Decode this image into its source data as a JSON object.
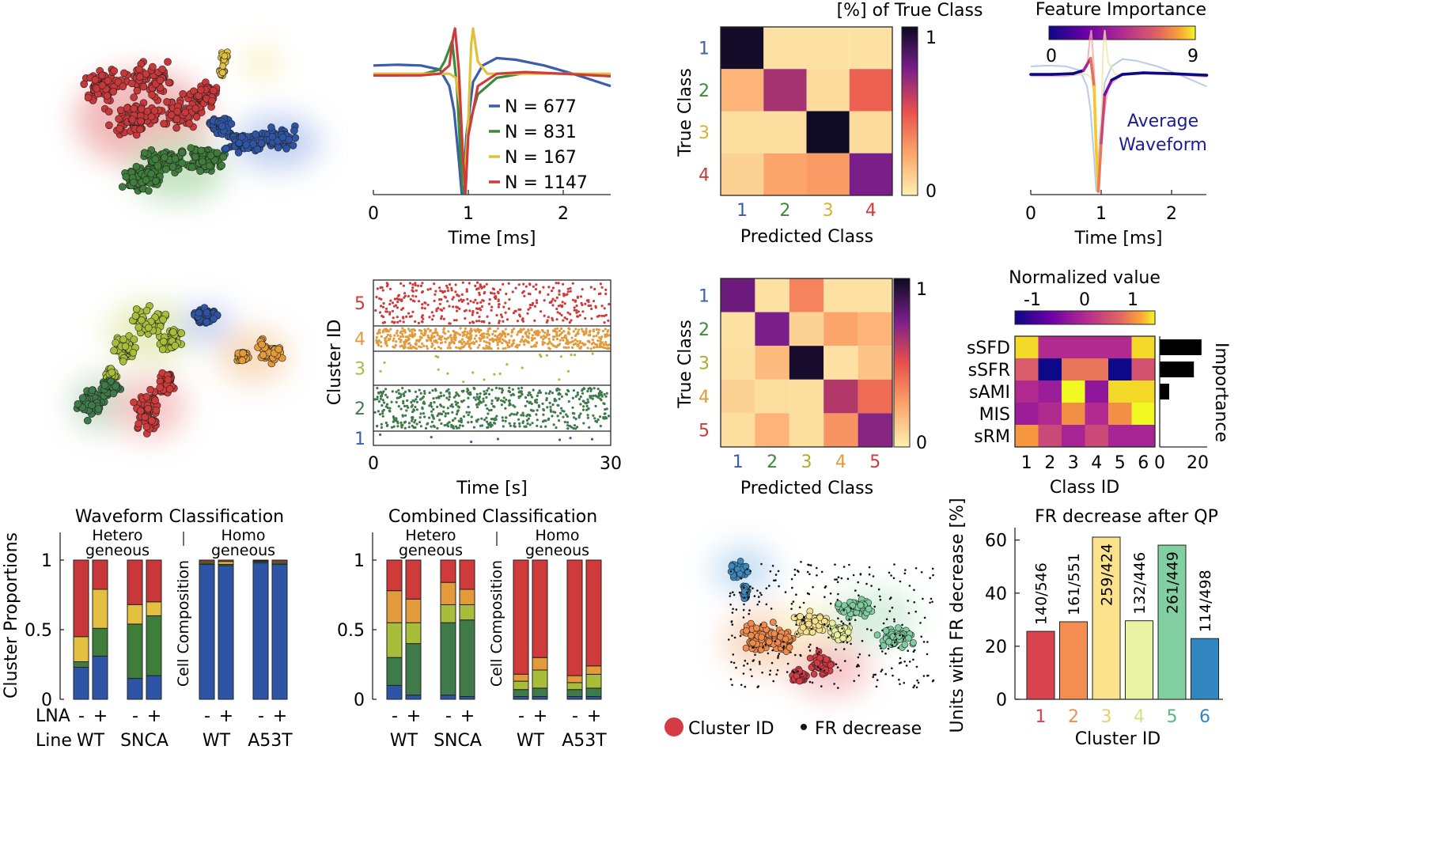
{
  "chart_data": [
    {
      "id": "umap_waveform",
      "type": "scatter",
      "title": "",
      "series": [
        {
          "color": "#c8373a"
        },
        {
          "color": "#3f7d3a"
        },
        {
          "color": "#2e55a5"
        },
        {
          "color": "#e3c040"
        }
      ]
    },
    {
      "id": "avg_waveforms",
      "type": "line",
      "xlabel": "Time [ms]",
      "ylabel": "",
      "xlim": [
        0,
        2.5
      ],
      "xticks": [
        "0",
        "1",
        "2"
      ],
      "series": [
        {
          "name": "N = 677",
          "color": "#3a5ea9",
          "x": [
            0,
            0.25,
            0.5,
            0.7,
            0.8,
            0.85,
            0.9,
            0.93,
            0.95,
            0.98,
            1.05,
            1.15,
            1.3,
            1.5,
            1.8,
            2.1,
            2.5
          ],
          "y": [
            0.55,
            0.56,
            0.55,
            0.5,
            0.3,
            0.0,
            -0.6,
            -1.0,
            -0.85,
            -0.3,
            0.35,
            0.55,
            0.64,
            0.62,
            0.55,
            0.45,
            0.3
          ]
        },
        {
          "name": "N = 831",
          "color": "#3b8a3b",
          "x": [
            0,
            0.25,
            0.5,
            0.7,
            0.75,
            0.8,
            0.83,
            0.88,
            0.92,
            0.95,
            1.0,
            1.1,
            1.3,
            1.6,
            2.0,
            2.5
          ],
          "y": [
            0.43,
            0.43,
            0.44,
            0.5,
            0.6,
            0.75,
            0.85,
            0.3,
            -0.6,
            -1.0,
            -0.2,
            0.2,
            0.4,
            0.46,
            0.45,
            0.42
          ]
        },
        {
          "name": "N = 167",
          "color": "#e0c13a",
          "x": [
            0,
            0.5,
            0.8,
            0.87,
            0.92,
            0.96,
            1.0,
            1.03,
            1.05,
            1.1,
            1.2,
            1.5,
            2.0,
            2.5
          ],
          "y": [
            0.45,
            0.45,
            0.45,
            0.4,
            0.0,
            -0.9,
            -0.1,
            0.8,
            1.0,
            0.6,
            0.45,
            0.45,
            0.45,
            0.45
          ]
        },
        {
          "name": "N = 1147",
          "color": "#cf3a3a",
          "x": [
            0,
            0.5,
            0.7,
            0.8,
            0.84,
            0.86,
            0.9,
            0.94,
            0.97,
            1.0,
            1.1,
            1.3,
            1.6,
            2.0,
            2.5
          ],
          "y": [
            0.43,
            0.43,
            0.45,
            0.55,
            0.9,
            1.0,
            0.5,
            -0.5,
            -1.0,
            -0.3,
            0.3,
            0.45,
            0.47,
            0.45,
            0.42
          ]
        }
      ]
    },
    {
      "id": "confusion_waveform",
      "type": "heatmap",
      "title": "[%] of True Class",
      "xlabel": "Predicted Class",
      "ylabel": "True Class",
      "categories": [
        "1",
        "2",
        "3",
        "4"
      ],
      "category_colors": [
        "#3a5ea9",
        "#3b8a3b",
        "#d8b232",
        "#cf3a3a"
      ],
      "values": [
        [
          0.98,
          0.05,
          0.05,
          0.05
        ],
        [
          0.2,
          0.65,
          0.07,
          0.45
        ],
        [
          0.06,
          0.06,
          0.99,
          0.07
        ],
        [
          0.1,
          0.25,
          0.28,
          0.75
        ]
      ],
      "colorbar": {
        "ticks": [
          "1",
          "0"
        ]
      }
    },
    {
      "id": "feature_importance_waveform",
      "type": "line",
      "title": "Feature Importance",
      "xlabel": "Time [ms]",
      "xlim": [
        0,
        2.5
      ],
      "xticks": [
        "0",
        "1",
        "2"
      ],
      "colorbar": {
        "min": "0",
        "max": "9"
      },
      "annotation": [
        "Average",
        "Waveform"
      ],
      "series": [
        {
          "name": "Average Waveform",
          "color": "#1a1f96",
          "x": [
            0,
            0.3,
            0.6,
            0.75,
            0.85,
            0.9,
            0.93,
            0.96,
            1.0,
            1.05,
            1.15,
            1.3,
            1.6,
            2.0,
            2.5
          ],
          "y": [
            0.45,
            0.45,
            0.46,
            0.5,
            0.65,
            0.3,
            -0.5,
            -1.0,
            -0.4,
            0.2,
            0.38,
            0.45,
            0.47,
            0.46,
            0.44
          ]
        }
      ]
    },
    {
      "id": "umap_combined",
      "type": "scatter",
      "series": [
        {
          "color": "#a8bd3a"
        },
        {
          "color": "#2e55a5"
        },
        {
          "color": "#e39a3a"
        },
        {
          "color": "#3f7a4a"
        },
        {
          "color": "#cf3a3a"
        }
      ]
    },
    {
      "id": "raster",
      "type": "scatter",
      "xlabel": "Time [s]",
      "ylabel": "Cluster ID",
      "xlim": [
        0,
        30
      ],
      "xticks": [
        "0",
        "30"
      ],
      "categories": [
        "5",
        "4",
        "3",
        "2",
        "1"
      ],
      "category_colors": [
        "#cf3a3a",
        "#e39a3a",
        "#a8bd3a",
        "#3f7a4a",
        "#3a5ea9"
      ],
      "spike_counts": [
        700,
        1100,
        40,
        1050,
        12
      ]
    },
    {
      "id": "confusion_combined",
      "type": "heatmap",
      "xlabel": "Predicted Class",
      "ylabel": "True Class",
      "categories": [
        "1",
        "2",
        "3",
        "4",
        "5"
      ],
      "category_colors": [
        "#3a5ea9",
        "#3b8a3b",
        "#a8ad2a",
        "#e39a3a",
        "#cf3a3a"
      ],
      "values": [
        [
          0.78,
          0.05,
          0.35,
          0.05,
          0.05
        ],
        [
          0.05,
          0.75,
          0.1,
          0.25,
          0.2
        ],
        [
          0.06,
          0.18,
          0.97,
          0.05,
          0.15
        ],
        [
          0.1,
          0.06,
          0.06,
          0.62,
          0.42
        ],
        [
          0.06,
          0.2,
          0.06,
          0.3,
          0.72
        ]
      ],
      "colorbar": {
        "ticks": [
          "1",
          "0"
        ]
      }
    },
    {
      "id": "feature_heatmap",
      "type": "heatmap",
      "title": "Normalized value",
      "xlabel": "Class ID",
      "ylabels": [
        "sSFD",
        "sSFR",
        "sAMI",
        "MIS",
        "sRM"
      ],
      "xlabels": [
        "1",
        "2",
        "3",
        "4",
        "5",
        "6"
      ],
      "colorbar": {
        "ticks": [
          "-1",
          "0",
          "1"
        ]
      },
      "values": [
        [
          1.2,
          0.0,
          0.0,
          0.0,
          0.0,
          1.2
        ],
        [
          0.55,
          -1.3,
          0.75,
          0.75,
          -1.3,
          0.45
        ],
        [
          0.0,
          -0.2,
          1.3,
          -0.3,
          1.2,
          1.2
        ],
        [
          -0.2,
          0.0,
          0.9,
          0.0,
          0.9,
          1.3
        ],
        [
          0.95,
          0.35,
          -0.1,
          0.35,
          -0.1,
          -0.1
        ]
      ],
      "importance": {
        "label": "Importance",
        "values": [
          22,
          18,
          5,
          0,
          0
        ],
        "xticks": [
          "0",
          "20"
        ],
        "xmax": 25
      }
    },
    {
      "id": "waveform_classification",
      "type": "bar",
      "title": "Waveform Classification",
      "ylabel": "Cluster Proportions",
      "ylim": [
        0,
        1
      ],
      "yticks": [
        "0",
        "0.5",
        "1"
      ],
      "group_labels": [
        [
          "Hetero",
          "geneous"
        ],
        [
          "Homo",
          "geneous"
        ]
      ],
      "side_label": "Cell Composition",
      "row_labels": [
        "LNA",
        "Line"
      ],
      "lna": [
        "-",
        "+",
        "-",
        "+",
        "-",
        "+",
        "-",
        "+"
      ],
      "lines": [
        "WT",
        "SNCA",
        "WT",
        "A53T"
      ],
      "stack_colors": [
        "#2e55a5",
        "#3f7d3a",
        "#e3c040",
        "#c8373a"
      ],
      "stacks": [
        [
          0.23,
          0.04,
          0.18,
          0.55
        ],
        [
          0.31,
          0.2,
          0.28,
          0.21
        ],
        [
          0.15,
          0.39,
          0.14,
          0.32
        ],
        [
          0.17,
          0.43,
          0.1,
          0.3
        ],
        [
          0.97,
          0.01,
          0.01,
          0.01
        ],
        [
          0.96,
          0.01,
          0.02,
          0.01
        ],
        [
          0.98,
          0.01,
          0.005,
          0.005
        ],
        [
          0.97,
          0.01,
          0.01,
          0.01
        ]
      ]
    },
    {
      "id": "combined_classification",
      "type": "bar",
      "title": "Combined Classification",
      "ylim": [
        0,
        1
      ],
      "yticks": [
        "0",
        "0.5",
        "1"
      ],
      "group_labels": [
        [
          "Hetero",
          "geneous"
        ],
        [
          "Homo",
          "geneous"
        ]
      ],
      "side_label": "Cell Composition",
      "lna": [
        "-",
        "+",
        "-",
        "+",
        "-",
        "+",
        "-",
        "+"
      ],
      "lines": [
        "WT",
        "SNCA",
        "WT",
        "A53T"
      ],
      "stack_colors": [
        "#2e55a5",
        "#3f7a4a",
        "#a8bd3a",
        "#e39a3a",
        "#cf3a3a"
      ],
      "stacks": [
        [
          0.1,
          0.2,
          0.25,
          0.23,
          0.22
        ],
        [
          0.03,
          0.37,
          0.15,
          0.17,
          0.28
        ],
        [
          0.03,
          0.52,
          0.13,
          0.16,
          0.16
        ],
        [
          0.02,
          0.55,
          0.11,
          0.11,
          0.21
        ],
        [
          0.02,
          0.05,
          0.06,
          0.05,
          0.82
        ],
        [
          0.02,
          0.06,
          0.13,
          0.09,
          0.7
        ],
        [
          0.02,
          0.05,
          0.05,
          0.05,
          0.83
        ],
        [
          0.02,
          0.06,
          0.1,
          0.06,
          0.76
        ]
      ]
    },
    {
      "id": "umap_fr",
      "type": "scatter",
      "legend": [
        "Cluster ID",
        "FR decrease"
      ],
      "series": [
        {
          "color": "#d43b44"
        },
        {
          "color": "#f08a4b"
        },
        {
          "color": "#f7e08c"
        },
        {
          "color": "#e8f0a0"
        },
        {
          "color": "#7fcca0"
        },
        {
          "color": "#3a8ac0"
        }
      ]
    },
    {
      "id": "fr_decrease",
      "type": "bar",
      "title": "FR decrease after QP",
      "xlabel": "Cluster ID",
      "ylabel": "Units with FR decrease [%]",
      "ylim": [
        0,
        62
      ],
      "yticks": [
        "0",
        "20",
        "40",
        "60"
      ],
      "categories": [
        "1",
        "2",
        "3",
        "4",
        "5",
        "6"
      ],
      "values": [
        25.6,
        29.2,
        61.1,
        29.6,
        58.1,
        22.9
      ],
      "labels": [
        "140/546",
        "161/551",
        "259/424",
        "132/446",
        "261/449",
        "114/498"
      ],
      "label_inside": [
        false,
        false,
        true,
        false,
        true,
        false
      ],
      "colors": [
        "#d8434d",
        "#f48d51",
        "#fbe38e",
        "#eaf3a4",
        "#82cfa2",
        "#3186bf"
      ],
      "tick_colors": [
        "#d8434d",
        "#f48d51",
        "#e6cf70",
        "#d6e27e",
        "#5cb586",
        "#3186bf"
      ]
    }
  ]
}
